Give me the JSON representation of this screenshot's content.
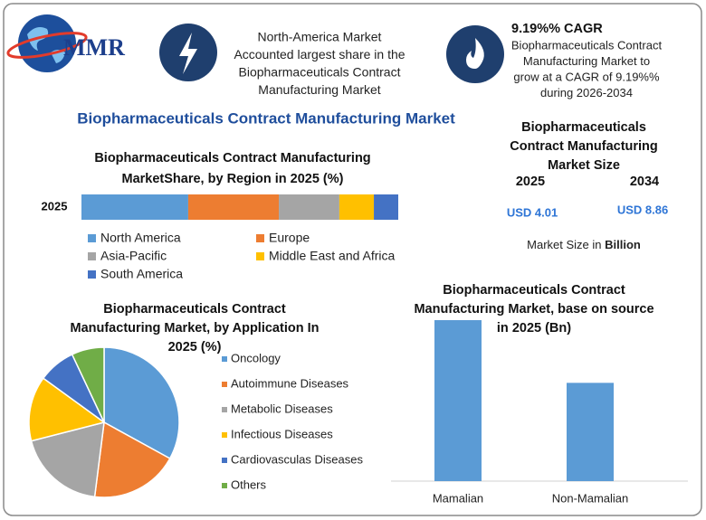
{
  "logo": "MMR",
  "highlight_1": {
    "lines": [
      "North-America Market",
      "Accounted largest share in the",
      "Biopharmaceuticals Contract",
      "Manufacturing Market"
    ]
  },
  "highlight_2": {
    "title": "9.19%% CAGR",
    "lines": [
      "Biopharmaceuticals Contract",
      "Manufacturing Market to",
      "grow at a CAGR of 9.19%%",
      "during 2026-2034"
    ]
  },
  "main_title": "Biopharmaceuticals Contract Manufacturing Market",
  "market_size": {
    "title_lines": [
      "Biopharmaceuticals",
      "Contract Manufacturing",
      "Market Size"
    ],
    "years": [
      "2025",
      "2034"
    ],
    "values": [
      "USD 4.01",
      "USD 8.86"
    ],
    "note": "Market Size in",
    "note_unit": "Billion"
  },
  "chart_data": [
    {
      "type": "stacked_bar",
      "title_lines": [
        "Biopharmaceuticals Contract Manufacturing",
        "MarketShare, by Region in 2025 (%)"
      ],
      "categories": [
        "2025"
      ],
      "series": [
        {
          "name": "North America",
          "color": "#5b9bd5",
          "values": [
            33.7
          ]
        },
        {
          "name": "Europe",
          "color": "#ed7d31",
          "values": [
            28.6
          ]
        },
        {
          "name": "Asia-Pacific",
          "color": "#a5a5a5",
          "values": [
            19.1
          ]
        },
        {
          "name": "Middle East and Africa",
          "color": "#ffc000",
          "values": [
            10.9
          ]
        },
        {
          "name": "South America",
          "color": "#4472c4",
          "values": [
            7.7
          ]
        }
      ]
    },
    {
      "type": "pie",
      "title_lines": [
        "Biopharmaceuticals Contract",
        "Manufacturing Market, by Application In",
        "2025 (%)"
      ],
      "categories": [
        "Oncology",
        "Autoimmune Diseases",
        "Metabolic Diseases",
        "Infectious Diseases",
        "Cardiovasculas Diseases",
        "Others"
      ],
      "values": [
        33,
        19,
        19,
        14,
        8,
        7
      ],
      "colors": [
        "#5b9bd5",
        "#ed7d31",
        "#a5a5a5",
        "#ffc000",
        "#4472c4",
        "#70ad47"
      ]
    },
    {
      "type": "bar",
      "title_lines": [
        "Biopharmaceuticals Contract",
        "Manufacturing Market, base on source",
        "in 2025 (Bn)"
      ],
      "categories": [
        "Mamalian",
        "Non-Mamalian"
      ],
      "values": [
        2.49,
        1.52
      ],
      "color": "#5b9bd5"
    }
  ]
}
